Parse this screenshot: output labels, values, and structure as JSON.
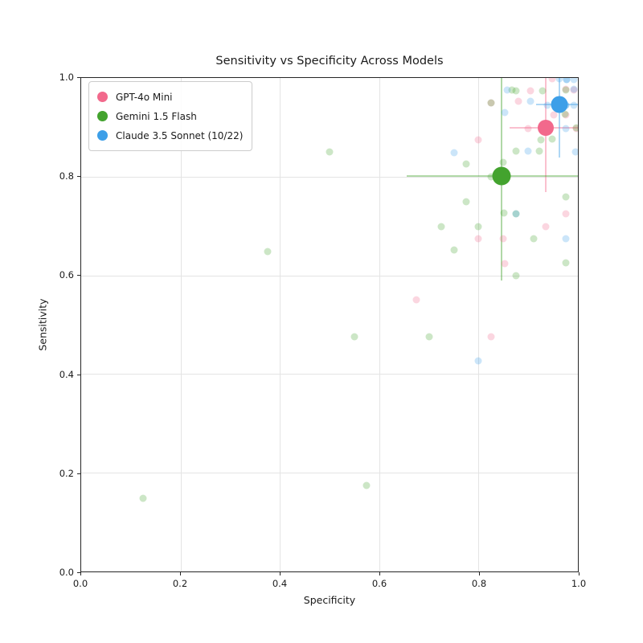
{
  "chart_data": {
    "type": "scatter",
    "title": "Sensitivity vs Specificity Across Models",
    "xlabel": "Specificity",
    "ylabel": "Sensitivity",
    "xlim": [
      0.0,
      1.0
    ],
    "ylim": [
      0.0,
      1.0
    ],
    "x_ticks": [
      "0.0",
      "0.2",
      "0.4",
      "0.6",
      "0.8",
      "1.0"
    ],
    "y_ticks": [
      "0.0",
      "0.2",
      "0.4",
      "0.6",
      "0.8",
      "1.0"
    ],
    "grid": true,
    "legend_position": "upper left",
    "series": [
      {
        "name": "GPT-4o Mini",
        "color": "#f2698c",
        "marker_size": 20,
        "mean": {
          "x": 0.935,
          "y": 0.899
        },
        "error_x_range": [
          0.862,
          1.0
        ],
        "error_y_range": [
          0.769,
          1.0
        ],
        "points": [
          [
            0.675,
            0.55
          ],
          [
            0.825,
            0.475
          ],
          [
            0.8,
            0.675
          ],
          [
            0.85,
            0.675
          ],
          [
            0.852,
            0.623
          ],
          [
            0.8,
            0.875
          ],
          [
            0.9,
            0.898
          ],
          [
            0.935,
            0.698
          ],
          [
            0.975,
            0.724
          ],
          [
            0.881,
            0.952
          ],
          [
            0.905,
            0.974
          ],
          [
            0.948,
            0.999
          ],
          [
            0.951,
            0.925
          ],
          [
            0.825,
            0.949
          ],
          [
            0.975,
            0.977
          ],
          [
            0.975,
            0.925
          ],
          [
            0.997,
            0.898
          ],
          [
            0.992,
            0.975
          ]
        ]
      },
      {
        "name": "Gemini 1.5 Flash",
        "color": "#43a32e",
        "marker_size": 23,
        "mean": {
          "x": 0.846,
          "y": 0.801
        },
        "error_x_range": [
          0.655,
          1.0
        ],
        "error_y_range": [
          0.59,
          1.0
        ],
        "points": [
          [
            0.125,
            0.148
          ],
          [
            0.575,
            0.175
          ],
          [
            0.55,
            0.475
          ],
          [
            0.7,
            0.475
          ],
          [
            0.375,
            0.649
          ],
          [
            0.5,
            0.85
          ],
          [
            0.75,
            0.651
          ],
          [
            0.725,
            0.698
          ],
          [
            0.8,
            0.698
          ],
          [
            0.775,
            0.75
          ],
          [
            0.775,
            0.826
          ],
          [
            0.875,
            0.6
          ],
          [
            0.975,
            0.625
          ],
          [
            0.911,
            0.675
          ],
          [
            0.975,
            0.759
          ],
          [
            0.851,
            0.727
          ],
          [
            0.875,
            0.724
          ],
          [
            0.85,
            0.829
          ],
          [
            0.826,
            0.8
          ],
          [
            0.876,
            0.852
          ],
          [
            0.923,
            0.852
          ],
          [
            0.926,
            0.875
          ],
          [
            0.949,
            0.877
          ],
          [
            0.867,
            0.975
          ],
          [
            0.876,
            0.974
          ],
          [
            0.928,
            0.974
          ],
          [
            0.826,
            0.95
          ],
          [
            0.975,
            0.975
          ],
          [
            0.974,
            0.926
          ],
          [
            0.996,
            0.899
          ]
        ]
      },
      {
        "name": "Claude 3.5 Sonnet (10/22)",
        "color": "#3d9fe8",
        "marker_size": 21,
        "mean": {
          "x": 0.962,
          "y": 0.947
        },
        "error_x_range": [
          0.916,
          1.0
        ],
        "error_y_range": [
          0.839,
          1.0
        ],
        "points": [
          [
            0.8,
            0.426
          ],
          [
            0.751,
            0.849
          ],
          [
            0.995,
            0.85
          ],
          [
            0.875,
            0.725
          ],
          [
            0.976,
            0.675
          ],
          [
            0.9,
            0.852
          ],
          [
            0.852,
            0.93
          ],
          [
            0.858,
            0.975
          ],
          [
            0.905,
            0.952
          ],
          [
            0.939,
            0.945
          ],
          [
            0.976,
            0.945
          ],
          [
            0.976,
            0.945
          ],
          [
            0.992,
            0.945
          ],
          [
            0.962,
            0.999
          ],
          [
            0.977,
            0.997
          ],
          [
            0.977,
            0.997
          ],
          [
            0.992,
            0.997
          ],
          [
            0.992,
            0.977
          ],
          [
            0.975,
            0.898
          ]
        ]
      }
    ]
  }
}
